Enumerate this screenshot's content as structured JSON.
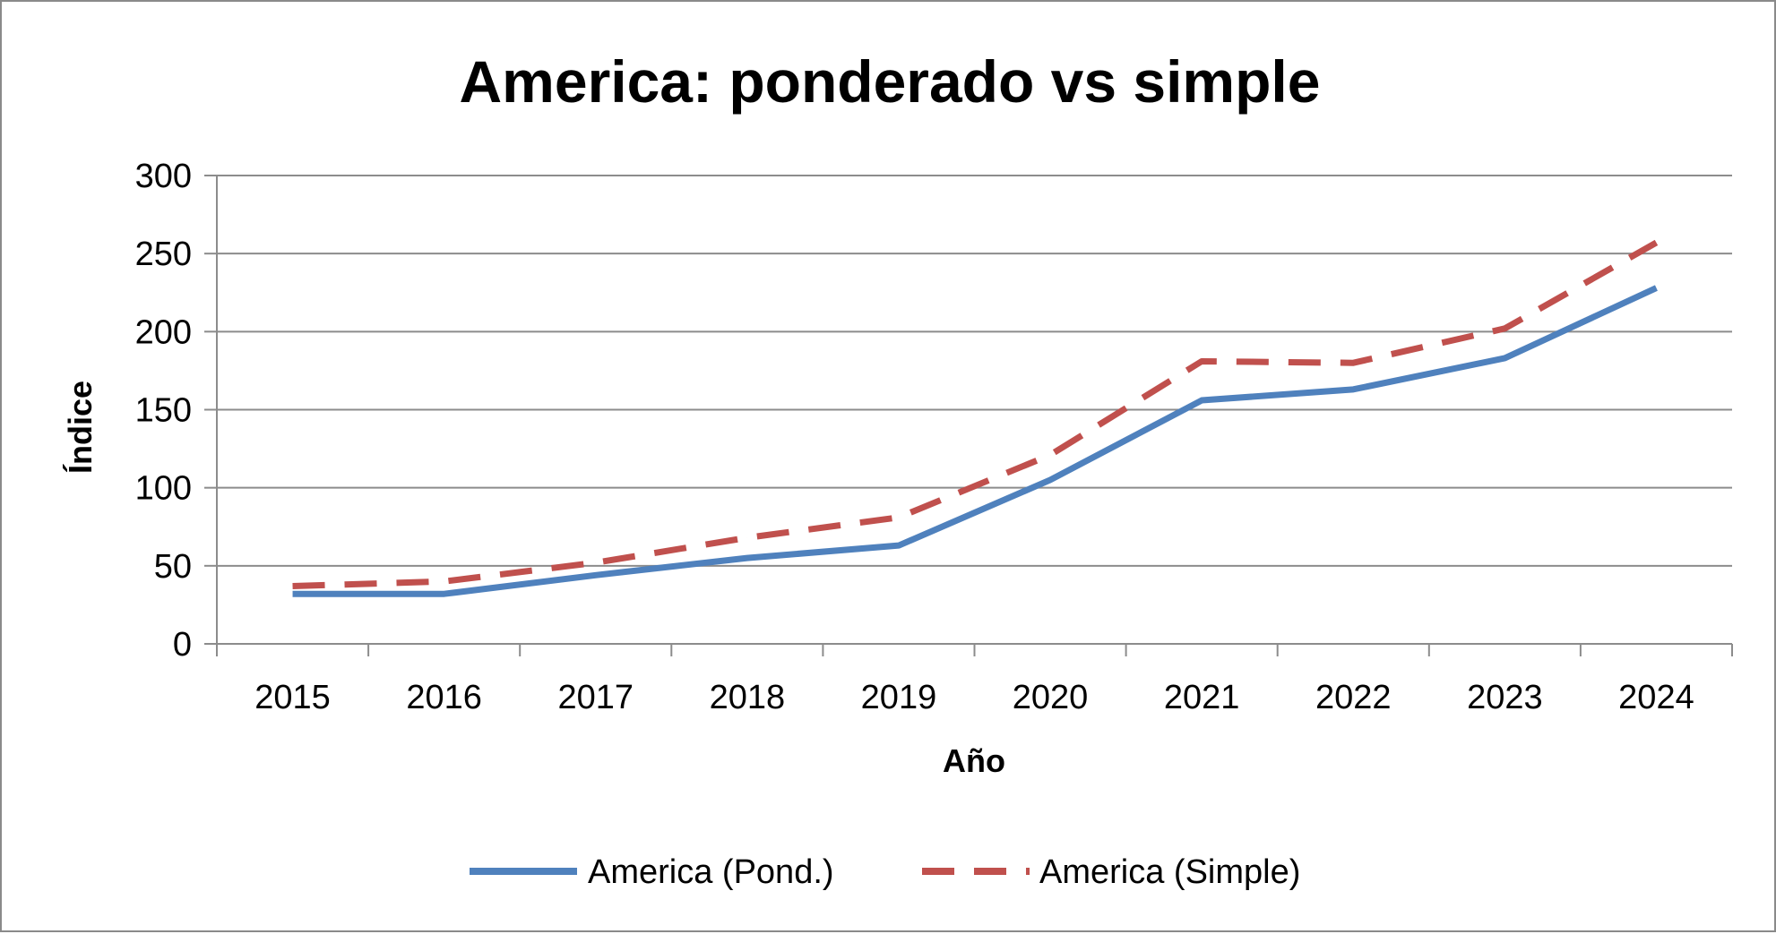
{
  "chart_data": {
    "type": "line",
    "title": "America: ponderado vs simple",
    "xlabel": "Año",
    "ylabel": "Índice",
    "categories": [
      "2015",
      "2016",
      "2017",
      "2018",
      "2019",
      "2020",
      "2021",
      "2022",
      "2023",
      "2024"
    ],
    "ylim": [
      0,
      300
    ],
    "yticks": [
      0,
      50,
      100,
      150,
      200,
      250,
      300
    ],
    "grid": true,
    "legend": "bottom",
    "series": [
      {
        "name": "America (Pond.)",
        "values": [
          32,
          32,
          44,
          55,
          63,
          105,
          156,
          163,
          183,
          228
        ],
        "color": "#4f81bd",
        "style": "solid"
      },
      {
        "name": "America (Simple)",
        "values": [
          37,
          40,
          52,
          68,
          81,
          121,
          181,
          180,
          202,
          257
        ],
        "color": "#c0504d",
        "style": "dashed"
      }
    ]
  }
}
